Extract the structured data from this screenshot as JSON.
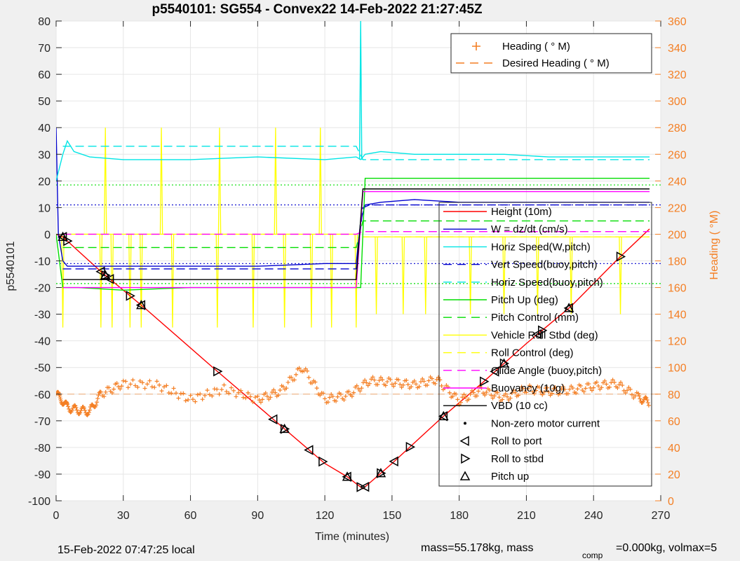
{
  "chart_data": {
    "type": "line",
    "title": "p5540101: SG554 - Convex22 14-Feb-2022 21:27:45Z",
    "xlabel": "Time (minutes)",
    "ylabel": "p5540101",
    "ylabel_right": "Heading (  °M)",
    "xlim": [
      0,
      270
    ],
    "ylim": [
      -100,
      80
    ],
    "ylim_right": [
      0,
      360
    ],
    "x_ticks": [
      0,
      30,
      60,
      90,
      120,
      150,
      180,
      210,
      240,
      270
    ],
    "y_ticks": [
      80,
      70,
      60,
      50,
      40,
      30,
      20,
      10,
      0,
      -10,
      -20,
      -30,
      -40,
      -50,
      -60,
      -70,
      -80,
      -90,
      -100
    ],
    "y_ticks_right": [
      360,
      340,
      320,
      300,
      280,
      260,
      240,
      220,
      200,
      180,
      160,
      140,
      120,
      100,
      80,
      60,
      40,
      20,
      0
    ],
    "grid": true,
    "colors": {
      "height": "#ff0000",
      "w": "#0000cd",
      "horiz_speed": "#00e5e5",
      "vert_speed_buoy": "#0000cd",
      "horiz_speed_buoy": "#00e5e5",
      "pitch_up": "#00dd00",
      "pitch_control": "#00dd00",
      "roll": "#ffff00",
      "roll_control": "#ffff00",
      "glide_angle": "#ff00ff",
      "buoyancy": "#ff00ff",
      "vbd": "#000000",
      "heading": "#f47f24",
      "desired_heading": "#f47f24"
    },
    "legend_top": [
      {
        "label": "Heading (  ° M)",
        "style": "marker-plus",
        "color": "#f47f24"
      },
      {
        "label": "Desired Heading (     ° M)",
        "style": "dashed",
        "color": "#f47f24"
      }
    ],
    "legend_main": [
      {
        "label": "Height (10m)",
        "style": "solid",
        "color": "#ff0000"
      },
      {
        "label": "W = dz/dt (cm/s)",
        "style": "solid",
        "color": "#0000cd"
      },
      {
        "label": "Horiz Speed(W,pitch)",
        "style": "solid",
        "color": "#00e5e5"
      },
      {
        "label": "Vert Speed(buoy,pitch)",
        "style": "dashed",
        "color": "#0000cd"
      },
      {
        "label": "Horiz Speed(buoy,pitch)",
        "style": "dashed",
        "color": "#00e5e5"
      },
      {
        "label": "Pitch Up (deg)",
        "style": "solid",
        "color": "#00dd00"
      },
      {
        "label": "Pitch Control (mm)",
        "style": "dashed",
        "color": "#00dd00"
      },
      {
        "label": "Vehicle Roll Stbd (deg)",
        "style": "solid",
        "color": "#ffff00"
      },
      {
        "label": "Roll Control (deg)",
        "style": "dashed",
        "color": "#ffff00"
      },
      {
        "label": "Glide Angle (buoy,pitch)",
        "style": "dashed",
        "color": "#ff00ff"
      },
      {
        "label": "Buoyancy (10g)",
        "style": "solid",
        "color": "#ff00ff"
      },
      {
        "label": "VBD (10 cc)",
        "style": "solid",
        "color": "#000000"
      },
      {
        "label": "Non-zero motor current",
        "style": "dot",
        "color": "#000000"
      },
      {
        "label": "Roll to port",
        "style": "tri-left",
        "color": "#000000"
      },
      {
        "label": "Roll to stbd",
        "style": "tri-right",
        "color": "#000000"
      },
      {
        "label": "Pitch up",
        "style": "tri-up",
        "color": "#000000"
      }
    ],
    "series": [
      {
        "key": "height",
        "x": [
          0,
          3,
          20,
          40,
          70,
          95,
          120,
          130,
          137,
          150,
          172,
          190,
          210,
          230,
          250,
          265
        ],
        "y": [
          0,
          -1,
          -14,
          -28,
          -50,
          -68,
          -86,
          -91,
          -95.5,
          -86,
          -69,
          -56,
          -41,
          -27,
          -10,
          2
        ]
      },
      {
        "key": "w",
        "x": [
          0,
          1,
          3,
          5,
          10,
          20,
          30,
          60,
          90,
          120,
          134,
          136,
          138,
          145,
          160,
          180,
          200,
          220,
          240,
          265
        ],
        "y": [
          40,
          0,
          -10,
          -12,
          -12,
          -12,
          -12,
          -12,
          -12,
          -11,
          -11,
          5,
          11,
          12,
          13,
          12,
          12,
          12,
          12,
          12
        ]
      },
      {
        "key": "horiz_speed",
        "x": [
          0,
          3,
          5,
          8,
          15,
          30,
          60,
          90,
          120,
          134,
          136,
          138,
          145,
          160,
          180,
          200,
          220,
          240,
          265
        ],
        "y": [
          20,
          30,
          35,
          31,
          29,
          28,
          28,
          29,
          28,
          29,
          28,
          30,
          31,
          30,
          30,
          30,
          29,
          29,
          29
        ]
      },
      {
        "key": "vert_speed_buoy",
        "x": [
          3,
          10,
          30,
          60,
          90,
          120,
          134,
          137,
          140,
          180,
          220,
          265
        ],
        "y": [
          -13,
          -13,
          -13,
          -13,
          -13,
          -13,
          -13,
          10,
          11,
          11,
          11,
          11
        ]
      },
      {
        "key": "horiz_speed_buoy",
        "x": [
          3,
          10,
          30,
          60,
          90,
          120,
          134,
          137,
          140,
          180,
          220,
          265
        ],
        "y": [
          33,
          33,
          33,
          33,
          33,
          33,
          33,
          28,
          28,
          28,
          28,
          28
        ]
      },
      {
        "key": "pitch_up",
        "x": [
          0,
          3,
          10,
          30,
          60,
          90,
          120,
          134,
          136,
          138,
          160,
          200,
          265
        ],
        "y": [
          0,
          -20,
          -20,
          -21,
          -20,
          -20,
          -20,
          -20,
          -20,
          21,
          21,
          21,
          21
        ]
      },
      {
        "key": "pitch_control",
        "x": [
          3,
          10,
          60,
          120,
          134,
          137,
          160,
          200,
          265
        ],
        "y": [
          -5,
          -5,
          -5,
          -5,
          -5,
          5,
          5,
          5,
          5
        ]
      },
      {
        "key": "glide_angle",
        "x": [
          3,
          60,
          134,
          137,
          265
        ],
        "y": [
          0,
          0,
          0,
          1,
          1
        ]
      },
      {
        "key": "buoyancy",
        "x": [
          3,
          60,
          134,
          137,
          265
        ],
        "y": [
          -20,
          -20,
          -20,
          16,
          16
        ]
      },
      {
        "key": "vbd",
        "x": [
          3,
          60,
          134,
          137,
          265
        ],
        "y": [
          -17,
          -17,
          -17,
          17,
          17
        ]
      }
    ],
    "heading_points": {
      "x": [
        0,
        3,
        5,
        10,
        15,
        20,
        30,
        45,
        60,
        75,
        90,
        100,
        110,
        120,
        130,
        140,
        150,
        160,
        170,
        180,
        190,
        200,
        210,
        220,
        230,
        240,
        250,
        260,
        265
      ],
      "y_right": [
        80,
        75,
        70,
        68,
        67,
        80,
        88,
        87,
        76,
        84,
        76,
        82,
        100,
        76,
        79,
        90,
        89,
        87,
        91,
        75,
        83,
        77,
        84,
        82,
        83,
        86,
        88,
        78,
        73
      ]
    },
    "desired_heading_level": 80
  },
  "footer": {
    "local_time": "15-Feb-2022 07:47:25 local",
    "mass": "mass=55.178kg, mass",
    "mass_sub": "comp",
    "mass_rest": "=0.000kg, volmax=5"
  }
}
